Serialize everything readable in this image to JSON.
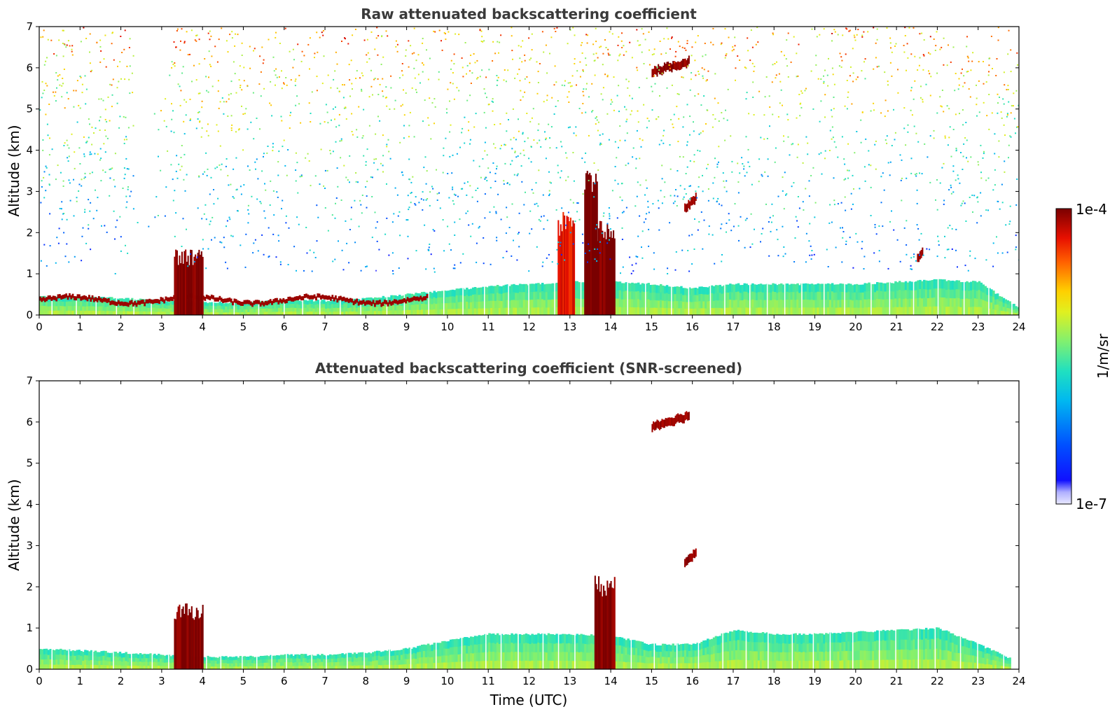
{
  "chart_data": [
    {
      "type": "heatmap",
      "title": "Raw attenuated backscattering coefficient",
      "ylabel": "Altitude (km)",
      "xlabel": "",
      "xlim": [
        0,
        24
      ],
      "ylim": [
        0,
        7
      ],
      "x_ticks": [
        "0",
        "1",
        "2",
        "3",
        "4",
        "5",
        "6",
        "7",
        "8",
        "9",
        "10",
        "11",
        "12",
        "13",
        "14",
        "15",
        "16",
        "17",
        "18",
        "19",
        "20",
        "21",
        "22",
        "23",
        "24"
      ],
      "y_ticks": [
        "0",
        "1",
        "2",
        "3",
        "4",
        "5",
        "6",
        "7"
      ],
      "layers": [
        {
          "feature": "boundary-layer-base",
          "x": [
            0,
            24
          ],
          "top_km": [
            0.45,
            0.45,
            0.4,
            0.35,
            0.3,
            0.3,
            0.35,
            0.35,
            0.4,
            0.5,
            0.6,
            0.7,
            0.75,
            0.8,
            0.8,
            0.75,
            0.65,
            0.75,
            0.75,
            0.75,
            0.75,
            0.8,
            0.85,
            0.8,
            0.15
          ],
          "value": 1e-06
        },
        {
          "feature": "cloud-edge",
          "x": [
            0,
            9.5
          ],
          "alt_km": 0.35,
          "value": 0.0001
        },
        {
          "feature": "cloud-column",
          "x": [
            3.3,
            4.0
          ],
          "top_km": 1.6,
          "value": 0.0001
        },
        {
          "feature": "cloud-column",
          "x": [
            13.6,
            14.1
          ],
          "top_km": 2.3,
          "value": 0.0001
        },
        {
          "feature": "plume",
          "x": [
            12.7,
            13.1
          ],
          "top_km": 2.5,
          "value": 5e-05
        },
        {
          "feature": "cloud-streak",
          "x": [
            13.35,
            13.65
          ],
          "top_km": 3.8,
          "value": 0.0001
        },
        {
          "feature": "cloud",
          "x": [
            15.0,
            15.9
          ],
          "alt_km": 6.0,
          "value": 0.0001
        },
        {
          "feature": "cloud",
          "x": [
            15.8,
            16.1
          ],
          "alt_km": 2.7,
          "value": 0.0001
        },
        {
          "feature": "cloud",
          "x": [
            21.5,
            21.65
          ],
          "alt_km": 1.45,
          "value": 0.0001
        },
        {
          "feature": "background-noise",
          "x": [
            0,
            24
          ],
          "alt_km": [
            1,
            7
          ],
          "value": 1e-05
        }
      ]
    },
    {
      "type": "heatmap",
      "title": "Attenuated backscattering coefficient (SNR-screened)",
      "ylabel": "Altitude (km)",
      "xlabel": "Time (UTC)",
      "xlim": [
        0,
        24
      ],
      "ylim": [
        0,
        7
      ],
      "x_ticks": [
        "0",
        "1",
        "2",
        "3",
        "4",
        "5",
        "6",
        "7",
        "8",
        "9",
        "10",
        "11",
        "12",
        "13",
        "14",
        "15",
        "16",
        "17",
        "18",
        "19",
        "20",
        "21",
        "22",
        "23",
        "24"
      ],
      "y_ticks": [
        "0",
        "1",
        "2",
        "3",
        "4",
        "5",
        "6",
        "7"
      ],
      "layers": [
        {
          "feature": "boundary-layer",
          "x": [
            0,
            23.8
          ],
          "top_km": [
            0.5,
            0.45,
            0.4,
            0.35,
            0.3,
            0.3,
            0.35,
            0.35,
            0.4,
            0.5,
            0.7,
            0.85,
            0.85,
            0.85,
            0.8,
            0.6,
            0.6,
            0.95,
            0.85,
            0.85,
            0.9,
            0.95,
            1.0,
            0.6,
            0.15
          ],
          "value": 1e-06
        },
        {
          "feature": "cloud-column",
          "x": [
            3.3,
            4.0
          ],
          "top_km": 1.6,
          "value": 0.0001
        },
        {
          "feature": "cloud-column",
          "x": [
            13.6,
            14.1
          ],
          "top_km": 2.3,
          "value": 0.0001
        },
        {
          "feature": "cloud",
          "x": [
            15.0,
            15.9
          ],
          "alt_km": 6.0,
          "value": 0.0001
        },
        {
          "feature": "cloud",
          "x": [
            15.8,
            16.1
          ],
          "alt_km": 2.7,
          "value": 0.0001
        }
      ]
    }
  ],
  "colorbar": {
    "label": "1/m/sr",
    "max_label": "1e-4",
    "min_label": "1e-7",
    "scale": "log",
    "range": [
      1e-07,
      0.0001
    ],
    "colormap": "jet"
  }
}
